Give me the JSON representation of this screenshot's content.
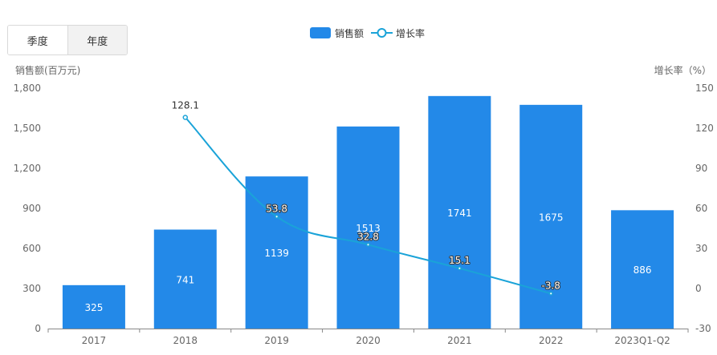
{
  "toggle": {
    "quarter_label": "季度",
    "year_label": "年度",
    "active": "year"
  },
  "colors": {
    "bar": "#2389e8",
    "line": "#1aa3d8",
    "axis_text": "#666666",
    "grid": "#e6e6e6"
  },
  "chart_data": {
    "type": "bar",
    "title": "",
    "categories": [
      "2017",
      "2018",
      "2019",
      "2020",
      "2021",
      "2022",
      "2023Q1-Q2"
    ],
    "series": [
      {
        "name": "销售额",
        "type": "bar",
        "axis": "left",
        "values": [
          325,
          741,
          1139,
          1513,
          1741,
          1675,
          886
        ]
      },
      {
        "name": "增长率",
        "type": "line",
        "axis": "right",
        "values": [
          null,
          128.1,
          53.8,
          32.8,
          15.1,
          -3.8,
          null
        ]
      }
    ],
    "y_left": {
      "label": "销售额(百万元)",
      "ylim": [
        0,
        1800
      ],
      "ticks": [
        0,
        300,
        600,
        900,
        1200,
        1500,
        1800
      ],
      "tick_labels": [
        "0",
        "300",
        "600",
        "900",
        "1,200",
        "1,500",
        "1,800"
      ]
    },
    "y_right": {
      "label": "增长率（%）",
      "ylim": [
        -30,
        150
      ],
      "ticks": [
        -30,
        0,
        30,
        60,
        90,
        120,
        150
      ],
      "tick_labels": [
        "-30",
        "0",
        "30",
        "60",
        "90",
        "120",
        "150"
      ]
    },
    "grid": false,
    "legend": "top-center"
  }
}
